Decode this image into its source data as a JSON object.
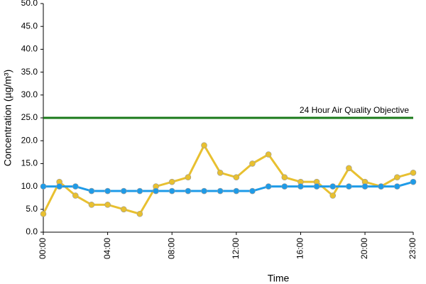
{
  "chart_data": {
    "type": "line",
    "x_label": "Time",
    "y_label": "Concentration (µg/m³)",
    "categories": [
      "00:00",
      null,
      null,
      null,
      "04:00",
      null,
      null,
      null,
      "08:00",
      null,
      null,
      null,
      "12:00",
      null,
      null,
      null,
      "16:00",
      null,
      null,
      null,
      "20:00",
      null,
      null,
      "23:00"
    ],
    "series": [
      {
        "color": "#e8c030",
        "values": [
          4,
          11,
          8,
          6,
          6,
          5,
          4,
          10,
          11,
          12,
          19,
          13,
          12,
          15,
          17,
          12,
          11,
          11,
          8,
          14,
          11,
          10,
          12,
          13
        ]
      },
      {
        "color": "#1e9be8",
        "values": [
          10,
          10,
          10,
          9,
          9,
          9,
          9,
          9,
          9,
          9,
          9,
          9,
          9,
          9,
          10,
          10,
          10,
          10,
          10,
          10,
          10,
          10,
          10,
          11
        ]
      }
    ],
    "reference_line": {
      "value": 25,
      "label": "24 Hour Air Quality Objective",
      "color": "#1a7a1a"
    },
    "ylim": [
      0,
      50
    ],
    "yticks": [
      {
        "value": 0,
        "label": "0.0"
      },
      {
        "value": 5,
        "label": "5.0"
      },
      {
        "value": 10,
        "label": "10.0"
      },
      {
        "value": 15,
        "label": "15.0"
      },
      {
        "value": 20,
        "label": "20.0"
      },
      {
        "value": 25,
        "label": "25.0"
      },
      {
        "value": 30,
        "label": "30.0"
      },
      {
        "value": 35,
        "label": "35.0"
      },
      {
        "value": 40,
        "label": "40.0"
      },
      {
        "value": 45,
        "label": "45.0"
      },
      {
        "value": 50,
        "label": "50.0"
      }
    ],
    "grid": false
  }
}
